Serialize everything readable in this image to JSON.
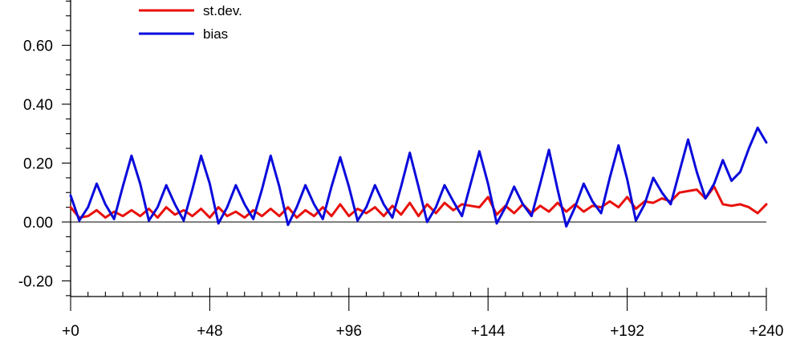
{
  "chart_data": {
    "type": "line",
    "title": "",
    "xlabel": "",
    "ylabel": "",
    "xlim": [
      0,
      240
    ],
    "ylim": [
      -0.25,
      0.75
    ],
    "x_major_ticks": [
      0,
      48,
      96,
      144,
      192,
      240
    ],
    "x_tick_labels": [
      "+0",
      "+48",
      "+96",
      "+144",
      "+192",
      "+240"
    ],
    "x_minor_step": 6,
    "y_major_ticks": [
      -0.2,
      0.0,
      0.2,
      0.4,
      0.6
    ],
    "y_tick_labels": [
      "-0.20",
      "0.00",
      "0.20",
      "0.40",
      "0.60"
    ],
    "y_minor_step": 0.05,
    "zero_line": true,
    "grid": false,
    "legend_position": "top-left",
    "series": [
      {
        "name": "st.dev.",
        "color": "#e8100c",
        "points": [
          [
            0,
            0.05
          ],
          [
            3,
            0.015
          ],
          [
            6,
            0.02
          ],
          [
            9,
            0.04
          ],
          [
            12,
            0.015
          ],
          [
            15,
            0.035
          ],
          [
            18,
            0.02
          ],
          [
            21,
            0.04
          ],
          [
            24,
            0.02
          ],
          [
            27,
            0.045
          ],
          [
            30,
            0.015
          ],
          [
            33,
            0.05
          ],
          [
            36,
            0.025
          ],
          [
            39,
            0.04
          ],
          [
            42,
            0.02
          ],
          [
            45,
            0.045
          ],
          [
            48,
            0.015
          ],
          [
            51,
            0.05
          ],
          [
            54,
            0.02
          ],
          [
            57,
            0.035
          ],
          [
            60,
            0.015
          ],
          [
            63,
            0.04
          ],
          [
            66,
            0.02
          ],
          [
            69,
            0.045
          ],
          [
            72,
            0.02
          ],
          [
            75,
            0.05
          ],
          [
            78,
            0.015
          ],
          [
            81,
            0.04
          ],
          [
            84,
            0.02
          ],
          [
            87,
            0.05
          ],
          [
            90,
            0.02
          ],
          [
            93,
            0.06
          ],
          [
            96,
            0.02
          ],
          [
            99,
            0.045
          ],
          [
            102,
            0.03
          ],
          [
            105,
            0.05
          ],
          [
            108,
            0.02
          ],
          [
            111,
            0.055
          ],
          [
            114,
            0.025
          ],
          [
            117,
            0.065
          ],
          [
            120,
            0.02
          ],
          [
            123,
            0.06
          ],
          [
            126,
            0.03
          ],
          [
            129,
            0.065
          ],
          [
            132,
            0.04
          ],
          [
            135,
            0.06
          ],
          [
            138,
            0.055
          ],
          [
            141,
            0.05
          ],
          [
            144,
            0.085
          ],
          [
            147,
            0.025
          ],
          [
            150,
            0.055
          ],
          [
            153,
            0.03
          ],
          [
            156,
            0.06
          ],
          [
            159,
            0.03
          ],
          [
            162,
            0.055
          ],
          [
            165,
            0.035
          ],
          [
            168,
            0.065
          ],
          [
            171,
            0.035
          ],
          [
            174,
            0.06
          ],
          [
            177,
            0.035
          ],
          [
            180,
            0.055
          ],
          [
            183,
            0.05
          ],
          [
            186,
            0.07
          ],
          [
            189,
            0.05
          ],
          [
            192,
            0.085
          ],
          [
            195,
            0.045
          ],
          [
            198,
            0.07
          ],
          [
            201,
            0.065
          ],
          [
            204,
            0.08
          ],
          [
            207,
            0.07
          ],
          [
            210,
            0.1
          ],
          [
            213,
            0.105
          ],
          [
            216,
            0.11
          ],
          [
            219,
            0.08
          ],
          [
            222,
            0.12
          ],
          [
            225,
            0.06
          ],
          [
            228,
            0.055
          ],
          [
            231,
            0.06
          ],
          [
            234,
            0.05
          ],
          [
            237,
            0.03
          ],
          [
            240,
            0.06
          ]
        ]
      },
      {
        "name": "bias",
        "color": "#0a0adc",
        "points": [
          [
            0,
            0.09
          ],
          [
            3,
            0.005
          ],
          [
            6,
            0.05
          ],
          [
            9,
            0.13
          ],
          [
            12,
            0.06
          ],
          [
            15,
            0.01
          ],
          [
            18,
            0.12
          ],
          [
            21,
            0.225
          ],
          [
            24,
            0.13
          ],
          [
            27,
            0.005
          ],
          [
            30,
            0.05
          ],
          [
            33,
            0.125
          ],
          [
            36,
            0.06
          ],
          [
            39,
            0.005
          ],
          [
            42,
            0.11
          ],
          [
            45,
            0.225
          ],
          [
            48,
            0.13
          ],
          [
            51,
            -0.005
          ],
          [
            54,
            0.05
          ],
          [
            57,
            0.125
          ],
          [
            60,
            0.06
          ],
          [
            63,
            0.01
          ],
          [
            66,
            0.11
          ],
          [
            69,
            0.225
          ],
          [
            72,
            0.12
          ],
          [
            75,
            -0.01
          ],
          [
            78,
            0.05
          ],
          [
            81,
            0.125
          ],
          [
            84,
            0.06
          ],
          [
            87,
            0.01
          ],
          [
            90,
            0.12
          ],
          [
            93,
            0.22
          ],
          [
            96,
            0.12
          ],
          [
            99,
            0.005
          ],
          [
            102,
            0.05
          ],
          [
            105,
            0.125
          ],
          [
            108,
            0.06
          ],
          [
            111,
            0.015
          ],
          [
            114,
            0.12
          ],
          [
            117,
            0.235
          ],
          [
            120,
            0.12
          ],
          [
            123,
            0.0
          ],
          [
            126,
            0.05
          ],
          [
            129,
            0.125
          ],
          [
            132,
            0.07
          ],
          [
            135,
            0.02
          ],
          [
            138,
            0.13
          ],
          [
            141,
            0.24
          ],
          [
            144,
            0.13
          ],
          [
            147,
            -0.005
          ],
          [
            150,
            0.05
          ],
          [
            153,
            0.12
          ],
          [
            156,
            0.06
          ],
          [
            159,
            0.02
          ],
          [
            162,
            0.13
          ],
          [
            165,
            0.245
          ],
          [
            168,
            0.11
          ],
          [
            171,
            -0.015
          ],
          [
            174,
            0.05
          ],
          [
            177,
            0.13
          ],
          [
            180,
            0.07
          ],
          [
            183,
            0.03
          ],
          [
            186,
            0.15
          ],
          [
            189,
            0.26
          ],
          [
            192,
            0.145
          ],
          [
            195,
            0.005
          ],
          [
            198,
            0.06
          ],
          [
            201,
            0.15
          ],
          [
            204,
            0.1
          ],
          [
            207,
            0.06
          ],
          [
            210,
            0.17
          ],
          [
            213,
            0.28
          ],
          [
            216,
            0.17
          ],
          [
            219,
            0.08
          ],
          [
            222,
            0.13
          ],
          [
            225,
            0.21
          ],
          [
            228,
            0.14
          ],
          [
            231,
            0.17
          ],
          [
            234,
            0.25
          ],
          [
            237,
            0.32
          ],
          [
            240,
            0.27
          ]
        ]
      }
    ]
  }
}
